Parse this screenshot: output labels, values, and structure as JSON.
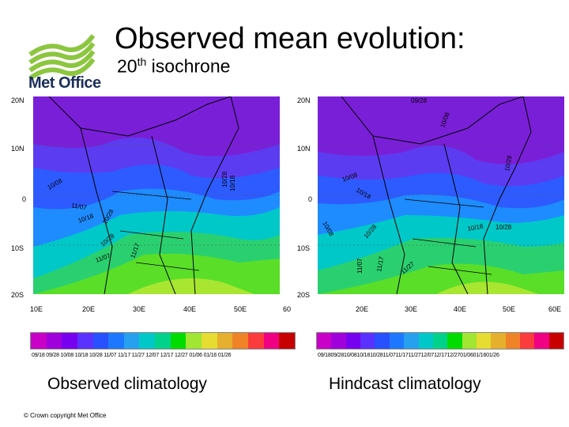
{
  "logo": {
    "text": "Met Office"
  },
  "title": "Observed mean evolution:",
  "subtitle": {
    "number": "20",
    "sup": "th",
    "rest": " isochrone"
  },
  "maps": {
    "left": {
      "y_labels": [
        "20N",
        "10N",
        "0",
        "10S",
        "20S"
      ],
      "x_labels": [
        "10E",
        "20E",
        "30E",
        "40E",
        "50E",
        "60"
      ],
      "contour_labels": [
        "10/18",
        "10/28",
        "10/18",
        "11/07",
        "10/28",
        "11/17",
        "11/07",
        "10/28",
        "10/08"
      ],
      "colorbar_labels": "09/18 09/28 10/08 10/18 10/28 11/07 11/17 11/27 12/07 12/17 12/27 01/06 01/16 01/26",
      "caption": "Observed climatology"
    },
    "right": {
      "y_labels": [
        "20N",
        "10N",
        "0",
        "10S",
        "20S"
      ],
      "x_labels": [
        "20E",
        "30E",
        "40E",
        "50E",
        "60E"
      ],
      "contour_labels": [
        "09/28",
        "10/08",
        "10/28",
        "10/08",
        "10/18",
        "10/28",
        "11/07",
        "11/17",
        "11/27",
        "10/28",
        "10/18",
        "10/08"
      ],
      "colorbar_labels": "09/1809/2810/0810/1810/2811/0711/1711/2712/0712/1712/2701/0601/1601/26",
      "caption": "Hindcast climatology"
    }
  },
  "colorbar_colors": [
    "#c800c8",
    "#a000dc",
    "#7800f0",
    "#5a32ff",
    "#2850ff",
    "#1e78ff",
    "#28a0f0",
    "#00c8c8",
    "#00d28c",
    "#00dc00",
    "#a0e632",
    "#e6dc32",
    "#e6af2d",
    "#f08228",
    "#fa3c3c",
    "#f00082",
    "#c80000"
  ],
  "footer": {
    "copyright": "© Crown copyright   Met Office"
  }
}
